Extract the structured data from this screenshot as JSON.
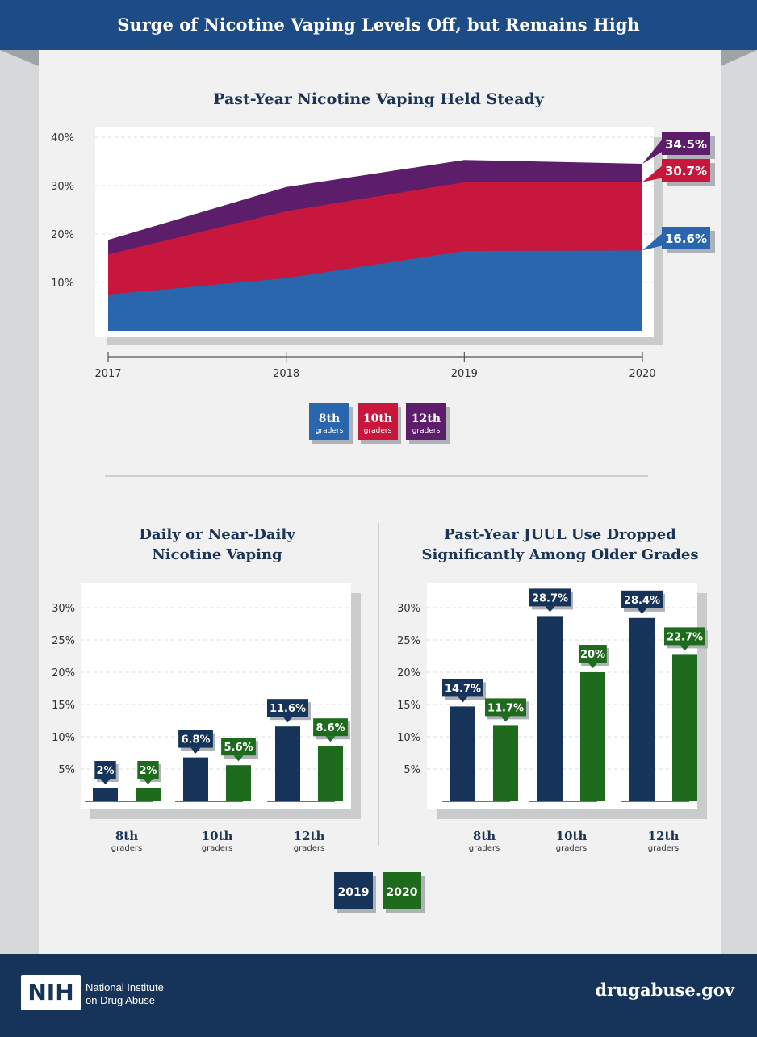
{
  "page": {
    "title": "Surge of Nicotine Vaping Levels Off, but Remains High",
    "footer_logo": "NIH",
    "footer_org_line1": "National Institute",
    "footer_org_line2": "on Drug Abuse",
    "footer_site": "drugabuse.gov"
  },
  "colors": {
    "header": "#1c4b86",
    "footer": "#163359",
    "grade8": "#2a66ad",
    "grade10": "#c8173d",
    "grade12": "#5c1d6b",
    "year2019": "#163359",
    "year2020": "#1e6b1e"
  },
  "chart_data": [
    {
      "type": "area",
      "stacked": true,
      "title": "Past-Year Nicotine Vaping Held Steady",
      "x": [
        "2017",
        "2018",
        "2019",
        "2020"
      ],
      "series": [
        {
          "name": "8th",
          "sub": "graders",
          "values": [
            7.5,
            10.9,
            16.5,
            16.6
          ]
        },
        {
          "name": "10th",
          "sub": "graders",
          "values": [
            15.8,
            24.7,
            30.7,
            30.7
          ]
        },
        {
          "name": "12th",
          "sub": "graders",
          "values": [
            18.8,
            29.7,
            35.3,
            34.5
          ]
        }
      ],
      "end_labels": [
        "16.6%",
        "30.7%",
        "34.5%"
      ],
      "y_ticks": [
        "10%",
        "20%",
        "30%",
        "40%"
      ],
      "y_tick_values": [
        10,
        20,
        30,
        40
      ],
      "ylim": [
        0,
        40
      ],
      "grid": true,
      "legend": "bottom-center"
    },
    {
      "type": "bar",
      "title_lines": [
        "Daily or Near-Daily",
        "Nicotine Vaping"
      ],
      "categories": [
        {
          "name": "8th",
          "sub": "graders"
        },
        {
          "name": "10th",
          "sub": "graders"
        },
        {
          "name": "12th",
          "sub": "graders"
        }
      ],
      "series": [
        {
          "name": "2019",
          "values": [
            2,
            6.8,
            11.6
          ],
          "labels": [
            "2%",
            "6.8%",
            "11.6%"
          ]
        },
        {
          "name": "2020",
          "values": [
            2,
            5.6,
            8.6
          ],
          "labels": [
            "2%",
            "5.6%",
            "8.6%"
          ]
        }
      ],
      "y_ticks": [
        "5%",
        "10%",
        "15%",
        "20%",
        "25%",
        "30%"
      ],
      "y_tick_values": [
        5,
        10,
        15,
        20,
        25,
        30
      ],
      "ylim": [
        0,
        30
      ],
      "grid": true
    },
    {
      "type": "bar",
      "title_lines": [
        "Past-Year JUUL Use Dropped",
        "Significantly Among Older Grades"
      ],
      "categories": [
        {
          "name": "8th",
          "sub": "graders"
        },
        {
          "name": "10th",
          "sub": "graders"
        },
        {
          "name": "12th",
          "sub": "graders"
        }
      ],
      "series": [
        {
          "name": "2019",
          "values": [
            14.7,
            28.7,
            28.4
          ],
          "labels": [
            "14.7%",
            "28.7%",
            "28.4%"
          ]
        },
        {
          "name": "2020",
          "values": [
            11.7,
            20,
            22.7
          ],
          "labels": [
            "11.7%",
            "20%",
            "22.7%"
          ]
        }
      ],
      "y_ticks": [
        "5%",
        "10%",
        "15%",
        "20%",
        "25%",
        "30%"
      ],
      "y_tick_values": [
        5,
        10,
        15,
        20,
        25,
        30
      ],
      "ylim": [
        0,
        30
      ],
      "grid": true
    }
  ],
  "bar_legend": [
    "2019",
    "2020"
  ]
}
